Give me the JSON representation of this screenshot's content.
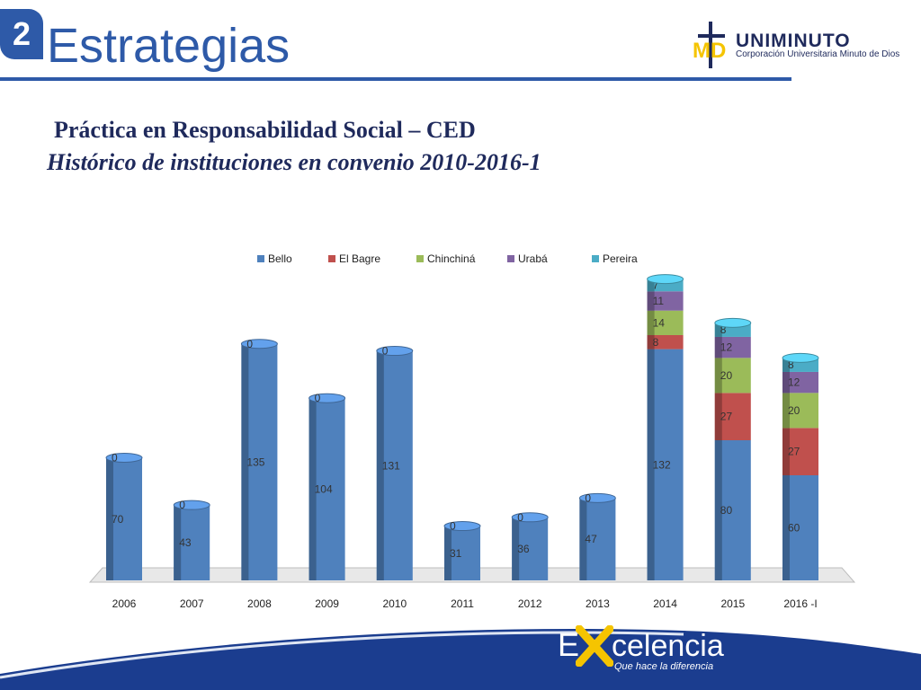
{
  "slide": {
    "number": "2",
    "title": "Estrategias",
    "subtitle": "Práctica en Responsabilidad Social – CED",
    "subtitle2": "Histórico de instituciones en convenio 2010-2016-1"
  },
  "logo": {
    "name": "UNIMINUTO",
    "tagline": "Corporación Universitaria Minuto de Dios",
    "accent": "#f5c400"
  },
  "footer": {
    "brand_e": "E",
    "brand_rest": "celencia",
    "slogan": "Que hace la diferencia",
    "color": "#1b3d8f"
  },
  "chart_data": {
    "type": "bar",
    "stacked": true,
    "categories": [
      "2006",
      "2007",
      "2008",
      "2009",
      "2010",
      "2011",
      "2012",
      "2013",
      "2014",
      "2015",
      "2016 -I"
    ],
    "series": [
      {
        "name": "Bello",
        "color": "#4f81bd",
        "values": [
          70,
          43,
          135,
          104,
          131,
          31,
          36,
          47,
          132,
          80,
          60
        ]
      },
      {
        "name": "El Bagre",
        "color": "#c0504d",
        "values": [
          0,
          0,
          0,
          0,
          0,
          0,
          0,
          0,
          8,
          27,
          27
        ]
      },
      {
        "name": "Chinchiná",
        "color": "#9bbb59",
        "values": [
          0,
          0,
          0,
          0,
          0,
          0,
          0,
          0,
          14,
          20,
          20
        ]
      },
      {
        "name": "Urabá",
        "color": "#8064a2",
        "values": [
          0,
          0,
          0,
          0,
          0,
          0,
          0,
          0,
          11,
          12,
          12
        ]
      },
      {
        "name": "Pereira",
        "color": "#4bacc6",
        "values": [
          0,
          0,
          0,
          0,
          0,
          0,
          0,
          0,
          7,
          8,
          8
        ]
      }
    ],
    "legend": "top",
    "grid": false
  }
}
